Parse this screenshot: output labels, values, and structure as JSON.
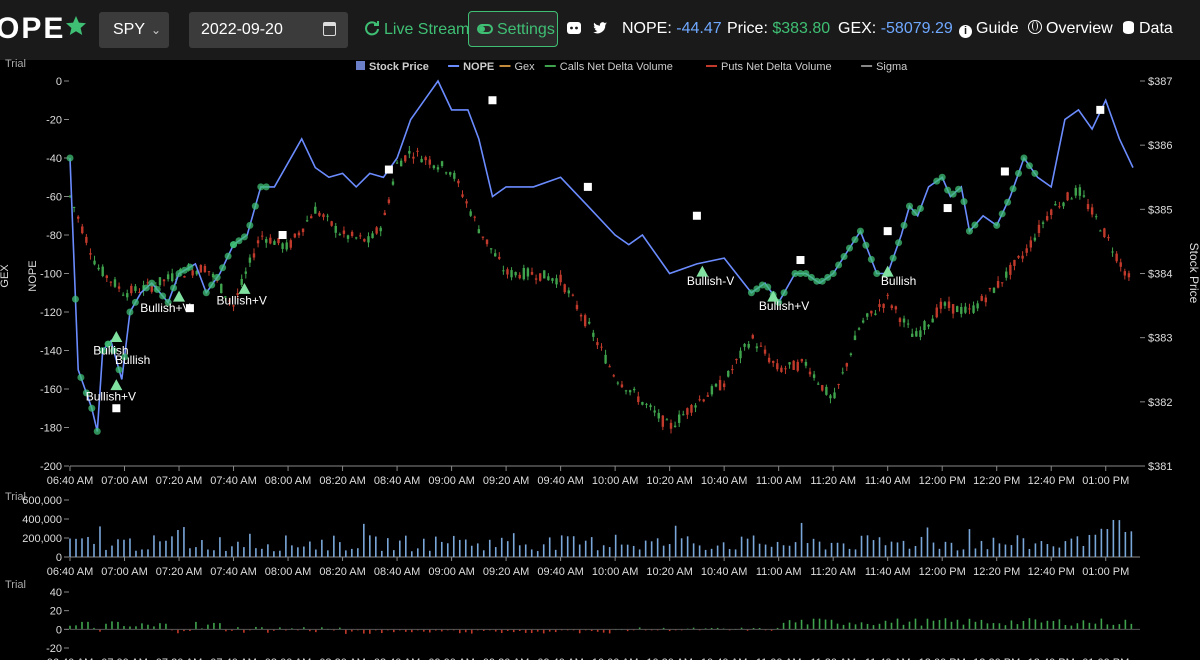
{
  "app": {
    "logo_text": "OPE"
  },
  "toolbar": {
    "ticker": "SPY",
    "date": "2022-09-20",
    "live_stream": "Live Stream",
    "settings": "Settings"
  },
  "stats": {
    "nope_label": "NOPE:",
    "nope_value": "-44.47",
    "price_label": "Price:",
    "price_value": "$383.80",
    "gex_label": "GEX:",
    "gex_value": "-58079.29"
  },
  "nav": {
    "guide": "Guide",
    "overview": "Overview",
    "data": "Data"
  },
  "watermark": "Trial",
  "colors": {
    "nope": "#6b8cff",
    "up": "#3fa34d",
    "down": "#c23a2b",
    "marker": "#3fbf74",
    "volume": "#7aa7d9",
    "accent": "#3fbf74"
  },
  "chart_data": [
    {
      "type": "line",
      "legend": [
        "Stock Price",
        "NOPE",
        "Gex",
        "Calls Net Delta Volume",
        "Puts Net Delta Volume",
        "Sigma"
      ],
      "ylabel": "NOPE",
      "ylabel_outer": "GEX",
      "y2label": "Stock Price",
      "ylim": [
        -200,
        0
      ],
      "y2lim": [
        381,
        387
      ],
      "y_ticks": [
        "0",
        "-20",
        "-40",
        "-60",
        "-80",
        "-100",
        "-120",
        "-140",
        "-160",
        "-180",
        "-200"
      ],
      "y2_ticks": [
        "$387",
        "$386",
        "$385",
        "$384",
        "$383",
        "$382",
        "$381"
      ],
      "x_ticks": [
        "06:40 AM",
        "07:00 AM",
        "07:20 AM",
        "07:40 AM",
        "08:00 AM",
        "08:20 AM",
        "08:40 AM",
        "09:00 AM",
        "09:20 AM",
        "09:40 AM",
        "10:00 AM",
        "10:20 AM",
        "10:40 AM",
        "11:00 AM",
        "11:20 AM",
        "11:40 AM",
        "12:00 PM",
        "12:20 PM",
        "12:40 PM",
        "01:00 PM"
      ],
      "annotations": [
        "Bullish",
        "Bullish",
        "Bullish+V",
        "Bullish+V",
        "Bullish+V",
        "Bullish-V",
        "Bullish+V",
        "Bullish"
      ],
      "series": [
        {
          "name": "NOPE",
          "x_minutes": [
            0,
            3,
            8,
            10,
            12,
            15,
            19,
            22,
            26,
            30,
            36,
            40,
            46,
            50,
            55,
            60,
            65,
            70,
            75,
            85,
            90,
            95,
            100,
            105,
            110,
            115,
            120,
            125,
            130,
            135,
            140,
            146,
            150,
            155,
            160,
            170,
            180,
            190,
            200,
            205,
            210,
            220,
            230,
            240,
            250,
            255,
            260,
            266,
            270,
            275,
            280,
            290,
            296,
            300,
            305,
            308,
            311,
            315,
            320,
            323,
            327,
            330,
            335,
            340,
            345,
            350,
            355,
            360,
            365,
            370,
            375,
            380,
            385,
            390
          ],
          "values": [
            -40,
            -150,
            -170,
            -182,
            -140,
            -135,
            -155,
            -120,
            -110,
            -105,
            -115,
            -100,
            -95,
            -110,
            -100,
            -85,
            -80,
            -55,
            -55,
            -30,
            -45,
            -50,
            -48,
            -55,
            -48,
            -50,
            -40,
            -20,
            -10,
            0,
            -15,
            -15,
            -30,
            -60,
            -55,
            -55,
            -50,
            -65,
            -80,
            -85,
            -80,
            -100,
            -95,
            -92,
            -110,
            -105,
            -115,
            -100,
            -100,
            -105,
            -100,
            -78,
            -100,
            -100,
            -80,
            -65,
            -70,
            -55,
            -50,
            -60,
            -55,
            -78,
            -70,
            -75,
            -60,
            -40,
            -50,
            -55,
            -20,
            -15,
            -25,
            -10,
            -30,
            -45
          ]
        },
        {
          "name": "Stock Price",
          "x_minutes": [
            0,
            10,
            20,
            30,
            40,
            50,
            60,
            70,
            80,
            90,
            100,
            110,
            115,
            120,
            125,
            130,
            140,
            150,
            160,
            170,
            180,
            190,
            200,
            210,
            220,
            230,
            240,
            250,
            260,
            270,
            280,
            290,
            300,
            310,
            320,
            330,
            340,
            350,
            360,
            370,
            380,
            390
          ],
          "values": [
            385.2,
            384.1,
            383.7,
            383.8,
            384.0,
            384.1,
            383.5,
            384.6,
            384.4,
            385.0,
            384.6,
            384.5,
            384.8,
            385.7,
            385.9,
            385.8,
            385.6,
            384.7,
            384.0,
            384.0,
            383.9,
            383.2,
            382.4,
            382.0,
            381.6,
            382.0,
            382.3,
            383.0,
            382.5,
            382.6,
            382.0,
            383.2,
            383.6,
            383.0,
            383.5,
            383.4,
            383.8,
            384.3,
            385.0,
            385.3,
            384.6,
            383.8
          ]
        }
      ]
    },
    {
      "type": "bar",
      "title": "",
      "ylim": [
        0,
        600000
      ],
      "y_ticks": [
        "600,000",
        "400,000",
        "200,000",
        "0"
      ],
      "x_ticks": [
        "06:40 AM",
        "07:00 AM",
        "07:20 AM",
        "07:40 AM",
        "08:00 AM",
        "08:20 AM",
        "08:40 AM",
        "09:00 AM",
        "09:20 AM",
        "09:40 AM",
        "10:00 AM",
        "10:20 AM",
        "10:40 AM",
        "11:00 AM",
        "11:20 AM",
        "11:40 AM",
        "12:00 PM",
        "12:20 PM",
        "12:40 PM",
        "01:00 PM"
      ]
    },
    {
      "type": "bar",
      "ylim": [
        -20,
        40
      ],
      "y_ticks": [
        "40",
        "20",
        "0",
        "-20"
      ]
    }
  ]
}
